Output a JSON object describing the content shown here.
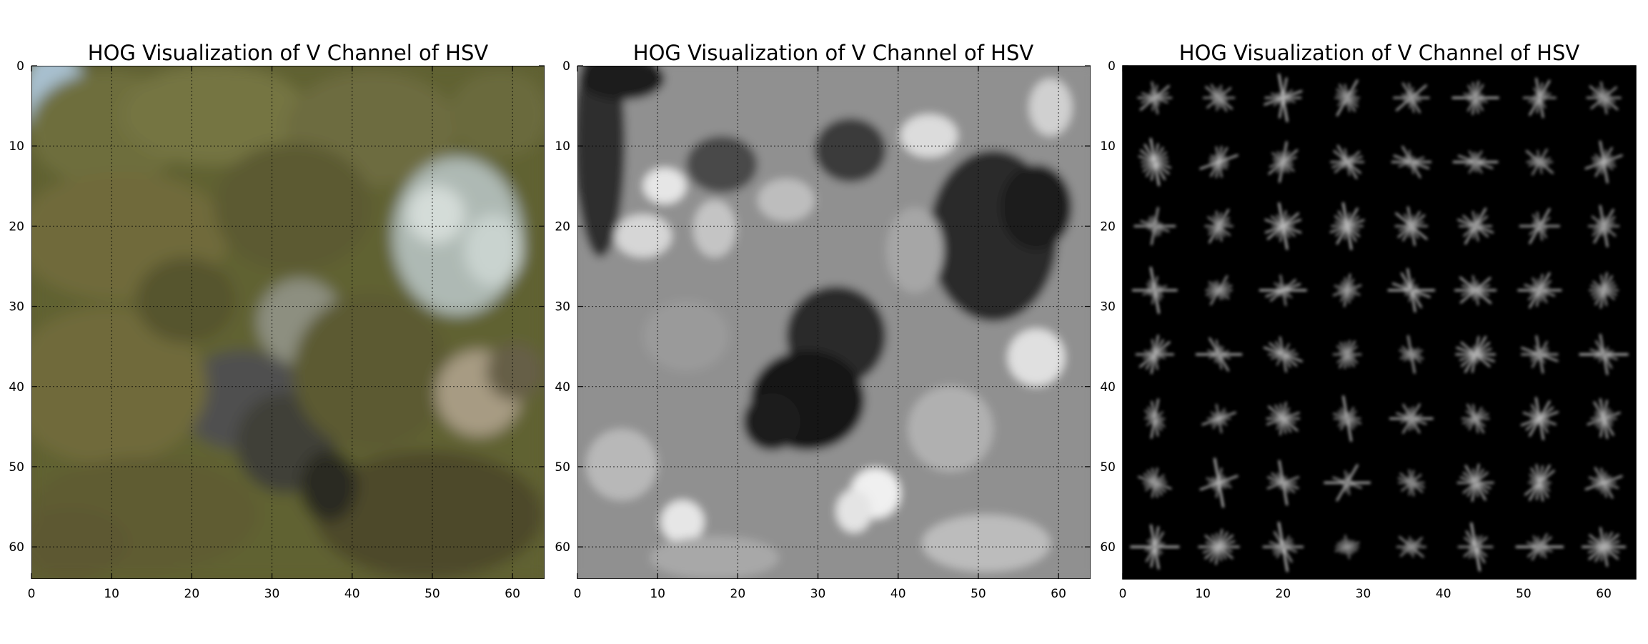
{
  "figure": {
    "background": "#ffffff"
  },
  "chart_data": [
    {
      "type": "heatmap",
      "panel": "left",
      "title": "HOG Visualization of V Channel of HSV",
      "xlabel": "",
      "ylabel": "",
      "xlim": [
        0,
        64
      ],
      "ylim": [
        64,
        0
      ],
      "x_ticks": [
        0,
        10,
        20,
        30,
        40,
        50,
        60
      ],
      "y_ticks": [
        0,
        10,
        20,
        30,
        40,
        50,
        60
      ],
      "grid": true,
      "image_kind": "rgb",
      "description_colors": {
        "dominant": "#6b6a3a",
        "sky": "#9fb9c9",
        "foliage_light": "#c7d2cf"
      }
    },
    {
      "type": "heatmap",
      "panel": "middle",
      "title": "HOG Visualization of V Channel of HSV",
      "xlabel": "",
      "ylabel": "",
      "xlim": [
        0,
        64
      ],
      "ylim": [
        64,
        0
      ],
      "x_ticks": [
        0,
        10,
        20,
        30,
        40,
        50,
        60
      ],
      "y_ticks": [
        0,
        10,
        20,
        30,
        40,
        50,
        60
      ],
      "grid": true,
      "image_kind": "grayscale",
      "colormap": "gray"
    },
    {
      "type": "heatmap",
      "panel": "right",
      "title": "HOG Visualization of V Channel of HSV",
      "xlabel": "",
      "ylabel": "",
      "xlim": [
        0,
        64
      ],
      "ylim": [
        64,
        0
      ],
      "x_ticks": [
        0,
        10,
        20,
        30,
        40,
        50,
        60
      ],
      "y_ticks": [
        0,
        10,
        20,
        30,
        40,
        50,
        60
      ],
      "grid": false,
      "image_kind": "hog",
      "colormap": "gray",
      "hog_cells": 8,
      "hog_orientations": 9
    }
  ]
}
